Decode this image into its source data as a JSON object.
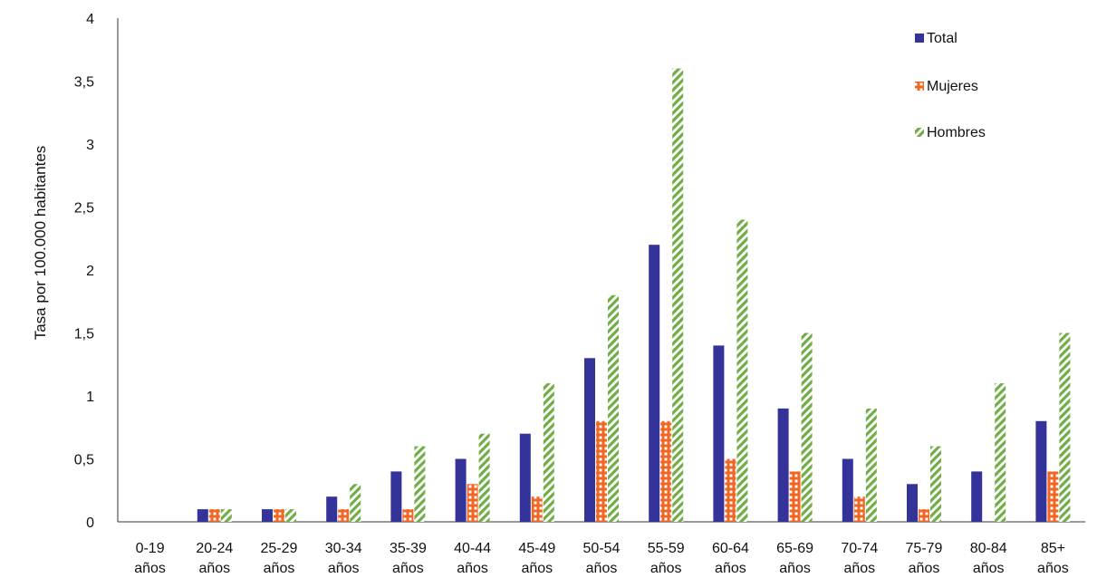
{
  "chart_data": {
    "type": "bar",
    "title": "",
    "xlabel": "",
    "ylabel": "Tasa por 100.000 habitantes",
    "ylim": [
      0,
      4
    ],
    "yticks": [
      "0",
      "0,5",
      "1",
      "1,5",
      "2",
      "2,5",
      "3",
      "3,5",
      "4"
    ],
    "grid": false,
    "legend_position": "top-right",
    "categories": [
      [
        "0-19",
        "años"
      ],
      [
        "20-24",
        "años"
      ],
      [
        "25-29",
        "años"
      ],
      [
        "30-34",
        "años"
      ],
      [
        "35-39",
        "años"
      ],
      [
        "40-44",
        "años"
      ],
      [
        "45-49",
        "años"
      ],
      [
        "50-54",
        "años"
      ],
      [
        "55-59",
        "años"
      ],
      [
        "60-64",
        "años"
      ],
      [
        "65-69",
        "años"
      ],
      [
        "70-74",
        "años"
      ],
      [
        "75-79",
        "años"
      ],
      [
        "80-84",
        "años"
      ],
      [
        "85+",
        "años"
      ]
    ],
    "series": [
      {
        "name": "Total",
        "color": "#33339a",
        "pattern": "solid",
        "values": [
          0,
          0.1,
          0.1,
          0.2,
          0.4,
          0.5,
          0.7,
          1.3,
          2.2,
          1.4,
          0.9,
          0.5,
          0.3,
          0.4,
          0.8
        ]
      },
      {
        "name": "Mujeres",
        "color": "#f26522",
        "pattern": "dotted-grid",
        "values": [
          0,
          0.1,
          0.1,
          0.1,
          0.1,
          0.3,
          0.2,
          0.8,
          0.8,
          0.5,
          0.4,
          0.2,
          0.1,
          0,
          0.4
        ]
      },
      {
        "name": "Hombres",
        "color": "#70ad47",
        "pattern": "diagonal-zigzag",
        "values": [
          0,
          0.1,
          0.1,
          0.3,
          0.6,
          0.7,
          1.1,
          1.8,
          3.6,
          2.4,
          1.5,
          0.9,
          0.6,
          1.1,
          1.5
        ]
      }
    ]
  }
}
